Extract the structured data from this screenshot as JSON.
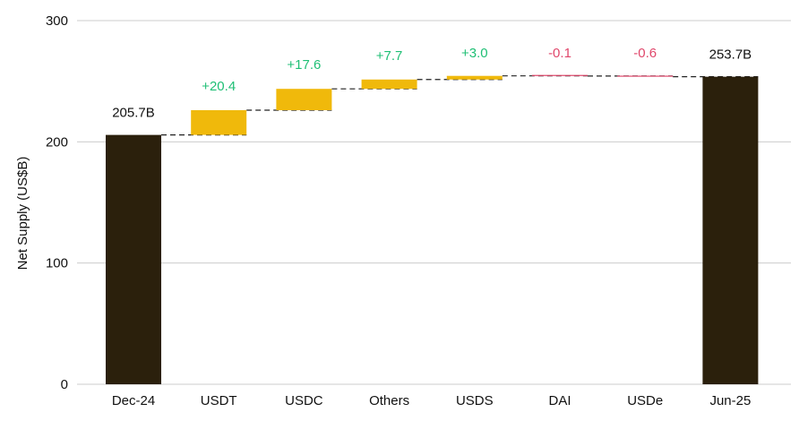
{
  "chart_data": {
    "type": "bar",
    "subtype": "waterfall",
    "ylabel": "Net Supply (US$B)",
    "ylim": [
      0,
      300
    ],
    "yticks": [
      0,
      100,
      200,
      300
    ],
    "grid": true,
    "categories": [
      "Dec-24",
      "USDT",
      "USDC",
      "Others",
      "USDS",
      "DAI",
      "USDe",
      "Jun-25"
    ],
    "values": [
      205.7,
      20.4,
      17.6,
      7.7,
      3.0,
      -0.1,
      -0.6,
      253.7
    ],
    "kinds": [
      "total",
      "delta",
      "delta",
      "delta",
      "delta",
      "delta",
      "delta",
      "total"
    ],
    "data_labels": [
      "205.7B",
      "+20.4",
      "+17.6",
      "+7.7",
      "+3.0",
      "-0.1",
      "-0.6",
      "253.7B"
    ],
    "colors": {
      "total": "#2b200c",
      "increase": "#f0b90b",
      "decrease": "#e0476b",
      "label_increase": "#1fbf75",
      "label_decrease": "#e0476b",
      "label_total": "#111111",
      "grid": "#cccccc",
      "connector": "#222222"
    }
  }
}
